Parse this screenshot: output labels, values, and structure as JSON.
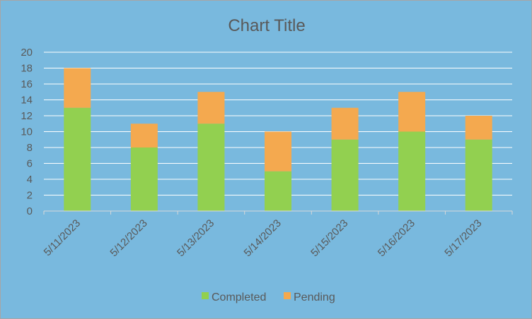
{
  "chart_data": {
    "type": "bar",
    "stacked": true,
    "title": "Chart Title",
    "categories": [
      "5/11/2023",
      "5/12/2023",
      "5/13/2023",
      "5/14/2023",
      "5/15/2023",
      "5/16/2023",
      "5/17/2023"
    ],
    "series": [
      {
        "name": "Completed",
        "color": "#92d050",
        "values": [
          13,
          8,
          11,
          5,
          9,
          10,
          9
        ]
      },
      {
        "name": "Pending",
        "color": "#f4a94f",
        "values": [
          5,
          3,
          4,
          5,
          4,
          5,
          3
        ]
      }
    ],
    "ylim": [
      0,
      20
    ],
    "yticks": [
      "0",
      "2",
      "4",
      "6",
      "8",
      "10",
      "12",
      "14",
      "16",
      "18",
      "20"
    ],
    "grid": true,
    "legend": "bottom",
    "background": "#79b9de"
  }
}
